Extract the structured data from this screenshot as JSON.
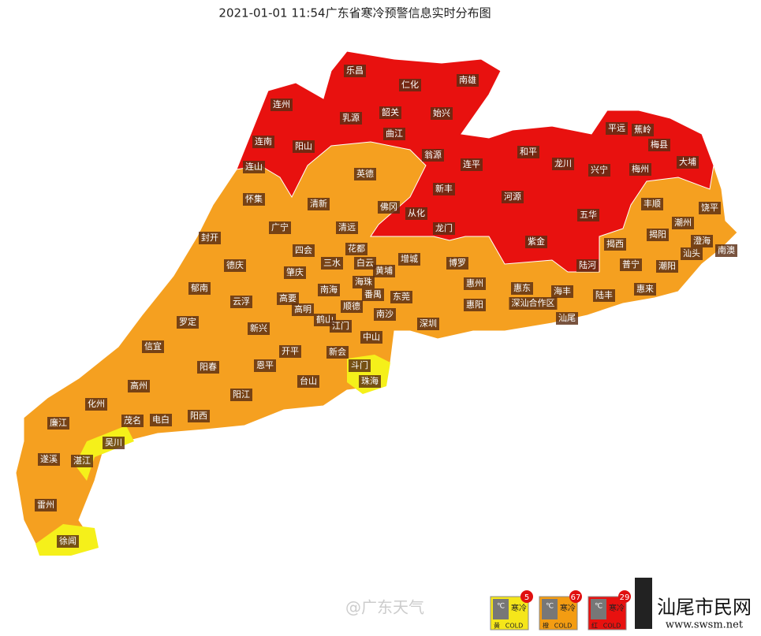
{
  "title": "2021-01-01 11:54广东省寒冷预警信息实时分布图",
  "regions": [
    "乐昌",
    "仁化",
    "南雄",
    "连州",
    "乳源",
    "韶关",
    "始兴",
    "曲江",
    "连南",
    "阳山",
    "翁源",
    "连山",
    "连平",
    "和平",
    "龙川",
    "兴宁",
    "平远",
    "蕉岭",
    "梅县",
    "梅州",
    "大埔",
    "新丰",
    "从化",
    "河源",
    "五华",
    "龙门",
    "紫金",
    "揭西",
    "陆河",
    "英德",
    "怀集",
    "清新",
    "佛冈",
    "丰顺",
    "饶平",
    "潮州",
    "广宁",
    "清远",
    "封开",
    "揭阳",
    "澄海",
    "四会",
    "花都",
    "汕头",
    "南澳",
    "德庆",
    "三水",
    "白云",
    "增城",
    "博罗",
    "普宁",
    "潮阳",
    "黄埔",
    "肇庆",
    "郁南",
    "南海",
    "海珠",
    "番禺",
    "惠州",
    "惠东",
    "海丰",
    "陆丰",
    "惠来",
    "云浮",
    "高要",
    "东莞",
    "惠阳",
    "深汕合作区",
    "高明",
    "顺德",
    "罗定",
    "鹤山",
    "南沙",
    "汕尾",
    "新兴",
    "江门",
    "深圳",
    "信宜",
    "中山",
    "开平",
    "新会",
    "阳春",
    "恩平",
    "斗门",
    "珠海",
    "高州",
    "台山",
    "阳江",
    "化州",
    "茂名",
    "电白",
    "阳西",
    "廉江",
    "吴川",
    "遂溪",
    "湛江",
    "雷州",
    "徐闻"
  ],
  "legend": {
    "unit": "℃",
    "name": "寒冷",
    "en": "COLD",
    "items": [
      {
        "level": "黄",
        "count": 5,
        "color": "#f5e61a"
      },
      {
        "level": "橙",
        "count": 67,
        "color": "#f39c12"
      },
      {
        "level": "红",
        "count": 29,
        "color": "#e8110f"
      }
    ]
  },
  "watermark": "@广东天气",
  "site_name": "汕尾市民网",
  "site_url": "www.swsm.net"
}
